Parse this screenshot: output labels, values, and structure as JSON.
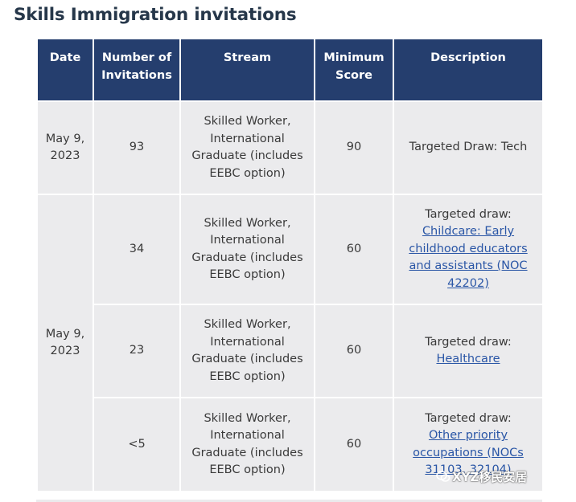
{
  "title": "Skills Immigration invitations",
  "headers": {
    "date": "Date",
    "invitations": "Number of Invitations",
    "stream": "Stream",
    "score": "Minimum Score",
    "description": "Description"
  },
  "rows": [
    {
      "date": "May 9, 2023",
      "invitations": "93",
      "stream": "Skilled Worker, International Graduate (includes EEBC option)",
      "score": "90",
      "description_text": "Targeted Draw: Tech",
      "description_link": ""
    },
    {
      "date": "May 9, 2023",
      "invitations": "34",
      "stream": "Skilled Worker, International Graduate (includes EEBC option)",
      "score": "60",
      "description_text": "Targeted draw:",
      "description_link": "Childcare: Early childhood educators and assistants (NOC 42202)"
    },
    {
      "invitations": "23",
      "stream": "Skilled Worker, International Graduate (includes EEBC option)",
      "score": "60",
      "description_text": "Targeted draw:",
      "description_link": "Healthcare"
    },
    {
      "invitations": "<5",
      "stream": "Skilled Worker, International Graduate (includes EEBC option)",
      "score": "60",
      "description_text": "Targeted draw:",
      "description_link": "Other priority occupations (NOCs 31103, 32104)"
    }
  ],
  "watermark": "XYZ移民安居",
  "colors": {
    "header_bg": "#253e6e",
    "cell_bg": "#ebebed",
    "title": "#26374a",
    "link": "#2a56a6"
  }
}
